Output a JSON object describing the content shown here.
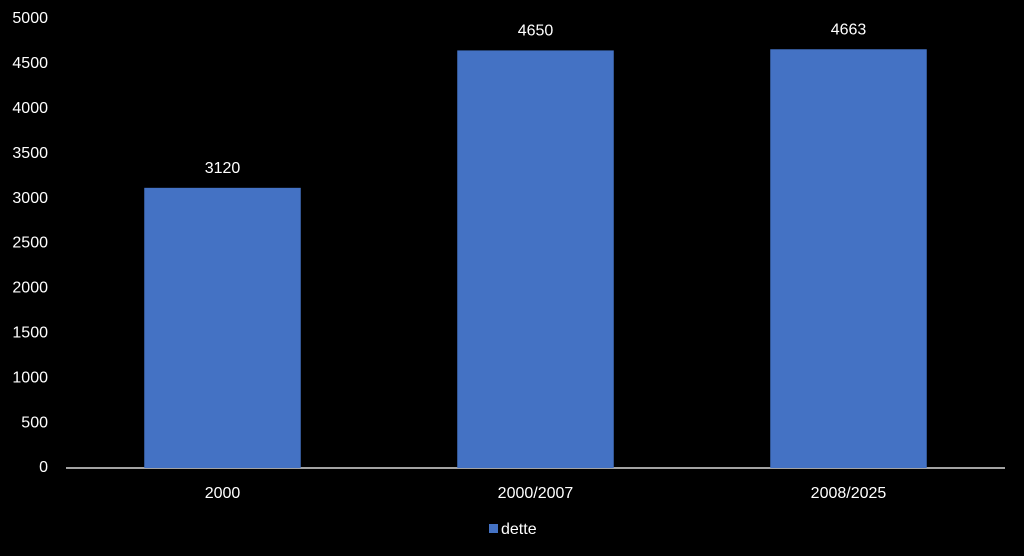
{
  "chart_data": {
    "type": "bar",
    "categories": [
      "2000",
      "2000/2007",
      "2008/2025"
    ],
    "series": [
      {
        "name": "dette",
        "color": "#4472c4",
        "values": [
          3120,
          4650,
          4663
        ]
      }
    ],
    "ylim": [
      0,
      5000
    ],
    "yticks": [
      0,
      500,
      1000,
      1500,
      2000,
      2500,
      3000,
      3500,
      4000,
      4500,
      5000
    ],
    "grid": false,
    "legend": "bottom"
  }
}
